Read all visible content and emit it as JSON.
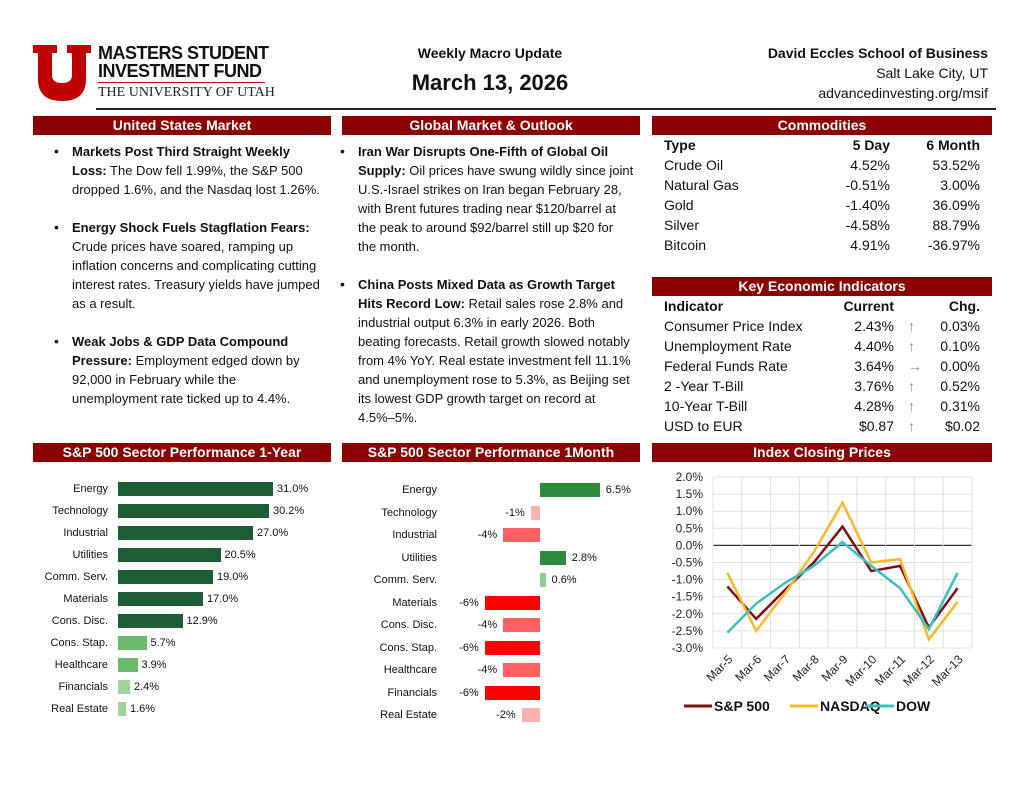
{
  "header": {
    "logo_line1": "MASTERS STUDENT",
    "logo_line2": "INVESTMENT FUND",
    "logo_line3": "THE UNIVERSITY OF UTAH",
    "subtitle": "Weekly Macro Update",
    "date": "March 13, 2026",
    "school": "David Eccles School of Business",
    "city": "Salt Lake City, UT",
    "url": "advancedinvesting.org/msif"
  },
  "us": {
    "title": "United States Market",
    "bullets": [
      {
        "head": "Markets Post Third Straight Weekly Loss:",
        "body": " The Dow fell 1.99%, the S&P 500 dropped 1.6%, and the Nasdaq lost 1.26%."
      },
      {
        "head": " Energy Shock Fuels Stagflation Fears:",
        "body": " Crude prices have soared, ramping up inflation concerns and complicating cutting interest rates. Treasury yields have jumped as a result."
      },
      {
        "head": " Weak Jobs & GDP Data Compound Pressure:",
        "body": " Employment edged down by 92,000 in February while the unemployment rate ticked up to 4.4%."
      }
    ]
  },
  "global": {
    "title": "Global Market & Outlook",
    "bullets": [
      {
        "head": "Iran War Disrupts One-Fifth of Global Oil Supply:",
        "body": " Oil prices have swung wildly since joint U.S.-Israel strikes on Iran began February 28, with Brent futures trading near $120/barrel at the peak to around $92/barrel still up $20 for the month."
      },
      {
        "head": "China Posts Mixed Data as Growth Target Hits Record Low:",
        "body": " Retail sales rose 2.8% and industrial output  6.3% in early 2026. Both beating forecasts. Retail growth slowed notably from 4% YoY. Real estate investment fell 11.1% and unemployment rose to 5.3%, as Beijing set its lowest GDP growth target on record at 4.5%–5%."
      }
    ]
  },
  "commodities": {
    "title": "Commodities",
    "headers": [
      "Type",
      "5 Day",
      "6 Month"
    ],
    "rows": [
      [
        "Crude Oil",
        "4.52%",
        "53.52%"
      ],
      [
        "Natural Gas",
        "-0.51%",
        "3.00%"
      ],
      [
        "Gold",
        "-1.40%",
        "36.09%"
      ],
      [
        "Silver",
        "-4.58%",
        "88.79%"
      ],
      [
        "Bitcoin",
        "4.91%",
        "-36.97%"
      ]
    ]
  },
  "indicators": {
    "title": "Key Economic Indicators",
    "headers": [
      "Indicator",
      "Current",
      "Chg."
    ],
    "rows": [
      [
        "Consumer Price Index",
        "2.43%",
        "↑",
        "0.03%"
      ],
      [
        "Unemployment Rate",
        "4.40%",
        "↑",
        "0.10%"
      ],
      [
        "Federal Funds Rate",
        "3.64%",
        "→",
        "0.00%"
      ],
      [
        "2 -Year T-Bill",
        "3.76%",
        "↑",
        "0.52%"
      ],
      [
        "10-Year T-Bill",
        "4.28%",
        "↑",
        "0.31%"
      ],
      [
        "USD to EUR",
        "$0.87",
        "↑",
        "$0.02"
      ]
    ]
  },
  "chart_data": [
    {
      "type": "bar",
      "title": "S&P 500 Sector Performance 1-Year",
      "categories": [
        "Energy",
        "Technology",
        "Industrial",
        "Utilities",
        "Comm. Serv.",
        "Materials",
        "Cons. Disc.",
        "Cons. Stap.",
        "Healthcare",
        "Financials",
        "Real Estate"
      ],
      "values": [
        31.0,
        30.2,
        27.0,
        20.5,
        19.0,
        17.0,
        12.9,
        5.7,
        3.9,
        2.4,
        1.6
      ],
      "labels": [
        "31.0%",
        "30.2%",
        "27.0%",
        "20.5%",
        "19.0%",
        "17.0%",
        "12.9%",
        "5.7%",
        "3.9%",
        "2.4%",
        "1.6%"
      ]
    },
    {
      "type": "bar",
      "title": "S&P 500 Sector Performance 1Month",
      "categories": [
        "Energy",
        "Technology",
        "Industrial",
        "Utilities",
        "Comm. Serv.",
        "Materials",
        "Cons. Disc.",
        "Cons. Stap.",
        "Healthcare",
        "Financials",
        "Real Estate"
      ],
      "values": [
        6.5,
        -1,
        -4,
        2.8,
        0.6,
        -6,
        -4,
        -6,
        -4,
        -6,
        -2
      ],
      "labels": [
        "6.5%",
        "-1%",
        "-4%",
        "2.8%",
        "0.6%",
        "-6%",
        "-4%",
        "-6%",
        "-4%",
        "-6%",
        "-2%"
      ]
    },
    {
      "type": "line",
      "title": "Index Closing Prices",
      "x": [
        "Mar-5",
        "Mar-6",
        "Mar-7",
        "Mar-8",
        "Mar-9",
        "Mar-10",
        "Mar-11",
        "Mar-12",
        "Mar-13"
      ],
      "ylim": [
        -3.0,
        2.0
      ],
      "yticks": [
        "2.0%",
        "1.5%",
        "1.0%",
        "0.5%",
        "0.0%",
        "-0.5%",
        "-1.0%",
        "-1.5%",
        "-2.0%",
        "-2.5%",
        "-3.0%"
      ],
      "grid": true,
      "legend": "bottom",
      "series": [
        {
          "name": "S&P 500",
          "color": "#7b1113",
          "values": [
            -1.2,
            -2.15,
            -1.3,
            -0.5,
            0.55,
            -0.75,
            -0.6,
            -2.4,
            -1.25
          ]
        },
        {
          "name": "NASDAQ",
          "color": "#fbb727",
          "values": [
            -0.8,
            -2.5,
            -1.4,
            -0.2,
            1.25,
            -0.5,
            -0.4,
            -2.75,
            -1.65
          ]
        },
        {
          "name": "DOW",
          "color": "#3cbfbf",
          "values": [
            -2.55,
            -1.7,
            -1.1,
            -0.6,
            0.1,
            -0.6,
            -1.25,
            -2.45,
            -0.8
          ]
        }
      ]
    }
  ]
}
